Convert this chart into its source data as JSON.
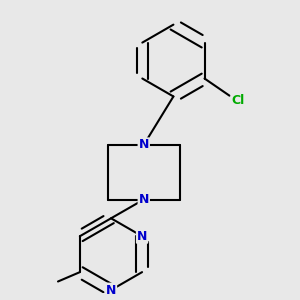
{
  "background_color": "#e8e8e8",
  "bond_color": "#000000",
  "N_color": "#0000cc",
  "Cl_color": "#00aa00",
  "line_width": 1.5,
  "font_size": 9,
  "figsize": [
    3.0,
    3.0
  ],
  "dpi": 100,
  "xlim": [
    0.05,
    0.95
  ],
  "ylim": [
    0.05,
    0.98
  ]
}
